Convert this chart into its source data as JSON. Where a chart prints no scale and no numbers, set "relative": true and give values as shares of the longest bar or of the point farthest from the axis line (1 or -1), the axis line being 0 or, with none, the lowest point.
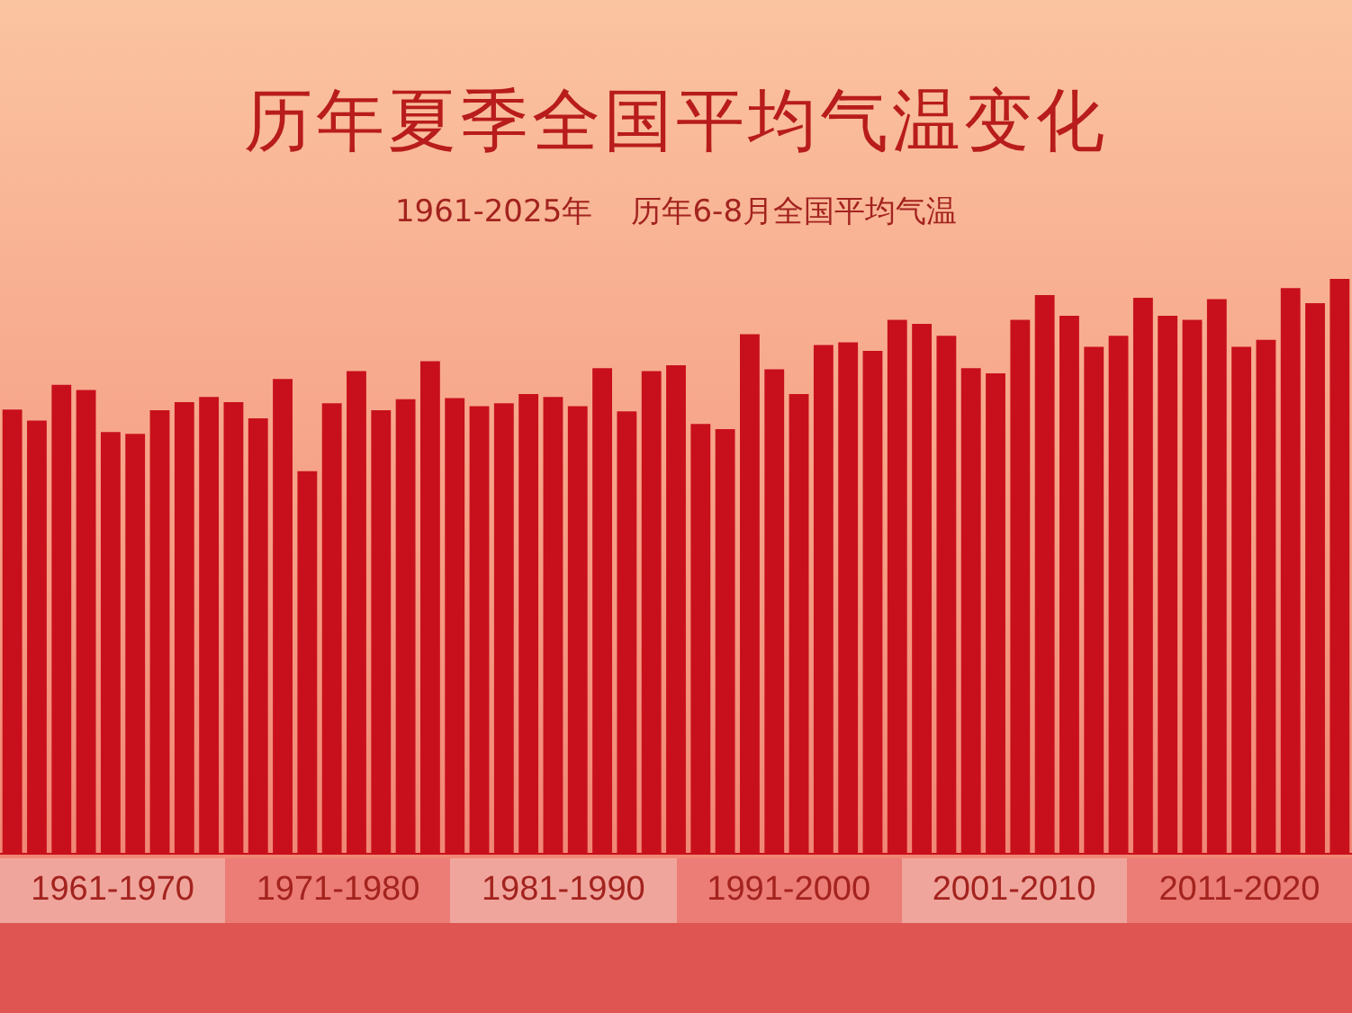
{
  "chart_data": {
    "type": "bar",
    "title": "历年夏季全国平均气温变化",
    "subtitle": "1961-2025年    历年6-8月全国平均气温",
    "relative": true,
    "color": "#c8101c",
    "categories": [
      null,
      null,
      null,
      null,
      null,
      null,
      null,
      null,
      null,
      null,
      null,
      null,
      null,
      null,
      null,
      null,
      null,
      null,
      null,
      null,
      null,
      null,
      null,
      null,
      null,
      null,
      null,
      null,
      null,
      null,
      null,
      null,
      null,
      null,
      null,
      null,
      null,
      null,
      null,
      null,
      null,
      null,
      null,
      null,
      null,
      null,
      null,
      null,
      null,
      null,
      null,
      null,
      null,
      null,
      null
    ],
    "values": [
      0.773,
      0.754,
      0.816,
      0.807,
      0.734,
      0.731,
      0.772,
      0.786,
      0.795,
      0.786,
      0.758,
      0.826,
      0.666,
      0.784,
      0.84,
      0.772,
      0.791,
      0.857,
      0.793,
      0.779,
      0.784,
      0.8,
      0.795,
      0.779,
      0.845,
      0.77,
      0.84,
      0.85,
      0.748,
      0.739,
      0.904,
      0.843,
      0.8,
      0.885,
      0.89,
      0.875,
      0.929,
      0.922,
      0.901,
      0.845,
      0.836,
      0.929,
      0.972,
      0.936,
      0.882,
      0.901,
      0.967,
      0.936,
      0.929,
      0.965,
      0.882,
      0.894,
      0.984,
      0.958,
      1
    ],
    "annotations": [
      "1961-1970",
      "1971-1980",
      "1981-1990",
      "1991-2000",
      "2001-2010",
      "2011-2020"
    ]
  }
}
